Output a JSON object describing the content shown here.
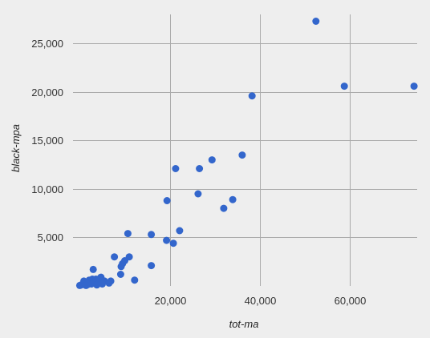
{
  "chart_data": {
    "type": "scatter",
    "xlabel": "tot-ma",
    "ylabel": "black-mpa",
    "xlim": [
      -1500,
      75000
    ],
    "ylim": [
      0,
      28000
    ],
    "x_ticks": [
      {
        "value": 20000,
        "label": "20,000"
      },
      {
        "value": 40000,
        "label": "40,000"
      },
      {
        "value": 60000,
        "label": "60,000"
      }
    ],
    "y_ticks": [
      {
        "value": 5000,
        "label": "5,000"
      },
      {
        "value": 10000,
        "label": "10,000"
      },
      {
        "value": 15000,
        "label": "15,000"
      },
      {
        "value": 20000,
        "label": "20,000"
      },
      {
        "value": 25000,
        "label": "25,000"
      }
    ],
    "grid": true,
    "legend": "none",
    "point_color": "#3366cc",
    "gridline_color": "#aaaaaa",
    "series": [
      {
        "points": [
          [
            52500,
            27300
          ],
          [
            58800,
            20600
          ],
          [
            74300,
            20600
          ],
          [
            38300,
            19600
          ],
          [
            36100,
            13500
          ],
          [
            29400,
            13000
          ],
          [
            21300,
            12100
          ],
          [
            26600,
            12100
          ],
          [
            26300,
            9500
          ],
          [
            19400,
            8800
          ],
          [
            34000,
            8900
          ],
          [
            32000,
            8000
          ],
          [
            22200,
            5700
          ],
          [
            10700,
            5400
          ],
          [
            15900,
            5300
          ],
          [
            19300,
            4700
          ],
          [
            20800,
            4400
          ],
          [
            7700,
            3000
          ],
          [
            11000,
            3000
          ],
          [
            10000,
            2600
          ],
          [
            9500,
            2300
          ],
          [
            9200,
            2000
          ],
          [
            15900,
            2100
          ],
          [
            3000,
            1700
          ],
          [
            9100,
            1200
          ],
          [
            4700,
            900
          ],
          [
            12200,
            600
          ],
          [
            2800,
            700
          ],
          [
            3600,
            700
          ],
          [
            2100,
            600
          ],
          [
            900,
            500
          ],
          [
            5500,
            500
          ],
          [
            6900,
            500
          ],
          [
            6500,
            300
          ],
          [
            2300,
            400
          ],
          [
            3200,
            300
          ],
          [
            1500,
            300
          ],
          [
            4200,
            250
          ],
          [
            1100,
            200
          ],
          [
            2600,
            200
          ],
          [
            600,
            150
          ],
          [
            1800,
            150
          ],
          [
            300,
            100
          ],
          [
            3800,
            100
          ],
          [
            0,
            50
          ],
          [
            1400,
            50
          ],
          [
            5000,
            200
          ]
        ]
      }
    ]
  }
}
